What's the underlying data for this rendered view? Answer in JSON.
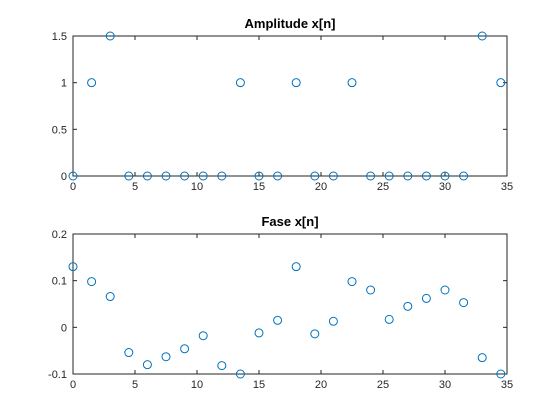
{
  "chart_data": [
    {
      "type": "scatter",
      "title": "Amplitude x[n]",
      "xlabel": "",
      "ylabel": "",
      "xlim": [
        0,
        35
      ],
      "ylim": [
        0,
        1.5
      ],
      "xticks": [
        0,
        5,
        10,
        15,
        20,
        25,
        30,
        35
      ],
      "xtick_labels": [
        "0",
        "5",
        "10",
        "15",
        "20",
        "25",
        "30",
        "35"
      ],
      "yticks": [
        0,
        0.5,
        1,
        1.5
      ],
      "ytick_labels": [
        "0",
        "0.5",
        "1",
        "1.5"
      ],
      "grid": false,
      "marker_color": "#0072BD",
      "series": [
        {
          "x": [
            0,
            1.5,
            3,
            4.5,
            6,
            7.5,
            9,
            10.5,
            12,
            13.5,
            15,
            16.5,
            18,
            19.5,
            21,
            22.5,
            24,
            25.5,
            27,
            28.5,
            30,
            31.5,
            33,
            34.5
          ],
          "y": [
            0,
            1,
            1.5,
            0,
            0,
            0,
            0,
            0,
            0,
            1,
            0,
            0,
            1,
            0,
            0,
            1,
            0,
            0,
            0,
            0,
            0,
            0,
            1.5,
            1
          ]
        }
      ]
    },
    {
      "type": "scatter",
      "title": "Fase x[n]",
      "xlabel": "",
      "ylabel": "",
      "xlim": [
        0,
        35
      ],
      "ylim": [
        -0.1,
        0.2
      ],
      "xticks": [
        0,
        5,
        10,
        15,
        20,
        25,
        30,
        35
      ],
      "xtick_labels": [
        "0",
        "5",
        "10",
        "15",
        "20",
        "25",
        "30",
        "35"
      ],
      "yticks": [
        -0.1,
        0,
        0.1,
        0.2
      ],
      "ytick_labels": [
        "-0.1",
        "0",
        "0.1",
        "0.2"
      ],
      "grid": false,
      "marker_color": "#0072BD",
      "series": [
        {
          "x": [
            0,
            1.5,
            3,
            4.5,
            6,
            7.5,
            9,
            10.5,
            12,
            13.5,
            15,
            16.5,
            18,
            19.5,
            21,
            22.5,
            24,
            25.5,
            27,
            28.5,
            30,
            31.5,
            33,
            34.5
          ],
          "y": [
            0.13,
            0.098,
            0.066,
            -0.054,
            -0.08,
            -0.063,
            -0.046,
            -0.018,
            -0.082,
            -0.1,
            -0.012,
            0.015,
            0.13,
            -0.014,
            0.013,
            0.098,
            0.08,
            0.017,
            0.045,
            0.062,
            0.08,
            0.053,
            -0.065,
            -0.1
          ]
        }
      ]
    }
  ]
}
